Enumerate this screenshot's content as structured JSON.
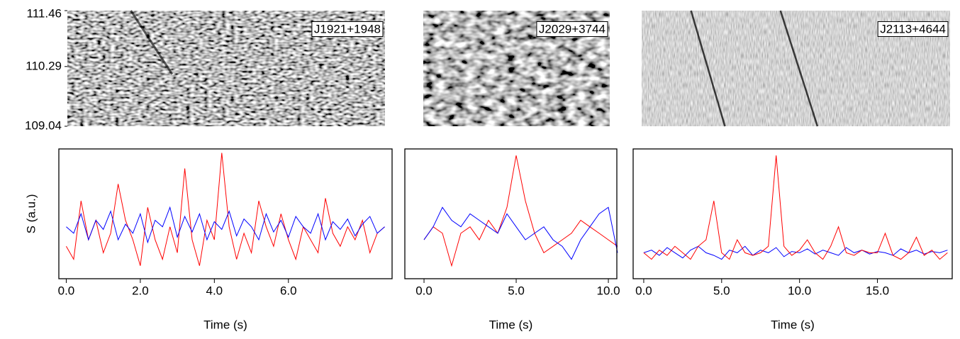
{
  "chart_data": [
    {
      "type": "heatmap",
      "label": "J1921+1948",
      "ylim": [
        109.04,
        111.46
      ],
      "yticks": [
        109.04,
        110.29,
        111.46
      ]
    },
    {
      "type": "heatmap",
      "label": "J2029+3744"
    },
    {
      "type": "heatmap",
      "label": "J2113+4644"
    },
    {
      "type": "line",
      "xlabel": "Time (s)",
      "ylabel": "S (a.u.)",
      "xlim": [
        -0.2,
        8.8
      ],
      "ylim": [
        0,
        1
      ],
      "xticks": [
        {
          "value": 0,
          "label": "0.0"
        },
        {
          "value": 2,
          "label": "2.0"
        },
        {
          "value": 4,
          "label": "4.0"
        },
        {
          "value": 6,
          "label": "6.0"
        }
      ],
      "x": [
        0,
        0.2,
        0.4,
        0.6,
        0.8,
        1,
        1.2,
        1.4,
        1.6,
        1.8,
        2,
        2.2,
        2.4,
        2.6,
        2.8,
        3,
        3.2,
        3.4,
        3.6,
        3.8,
        4,
        4.2,
        4.4,
        4.6,
        4.8,
        5,
        5.2,
        5.4,
        5.6,
        5.8,
        6,
        6.2,
        6.4,
        6.6,
        6.8,
        7,
        7.2,
        7.4,
        7.6,
        7.8,
        8,
        8.2,
        8.4,
        8.6
      ],
      "series": [
        {
          "color": "#ff0000",
          "values": [
            0.25,
            0.15,
            0.6,
            0.3,
            0.45,
            0.2,
            0.35,
            0.73,
            0.45,
            0.3,
            0.1,
            0.55,
            0.3,
            0.15,
            0.4,
            0.2,
            0.85,
            0.3,
            0.1,
            0.45,
            0.3,
            0.97,
            0.4,
            0.15,
            0.35,
            0.2,
            0.6,
            0.4,
            0.25,
            0.5,
            0.3,
            0.15,
            0.4,
            0.3,
            0.2,
            0.62,
            0.35,
            0.25,
            0.4,
            0.3,
            0.45,
            0.2,
            0.35,
            0.4
          ]
        },
        {
          "color": "#0000ff",
          "values": [
            0.4,
            0.35,
            0.5,
            0.3,
            0.45,
            0.38,
            0.52,
            0.3,
            0.42,
            0.35,
            0.5,
            0.28,
            0.45,
            0.4,
            0.55,
            0.32,
            0.48,
            0.36,
            0.5,
            0.3,
            0.44,
            0.38,
            0.52,
            0.33,
            0.46,
            0.4,
            0.3,
            0.5,
            0.36,
            0.45,
            0.32,
            0.48,
            0.4,
            0.35,
            0.5,
            0.3,
            0.44,
            0.38,
            0.46,
            0.33,
            0.42,
            0.48,
            0.35,
            0.4
          ]
        }
      ]
    },
    {
      "type": "line",
      "xlabel": "Time (s)",
      "xlim": [
        -1.04,
        10.46
      ],
      "ylim": [
        0,
        1
      ],
      "xticks": [
        {
          "value": 0,
          "label": "0.0"
        },
        {
          "value": 5,
          "label": "5.0"
        },
        {
          "value": 10,
          "label": "10.0"
        }
      ],
      "x": [
        0,
        0.5,
        1,
        1.5,
        2,
        2.5,
        3,
        3.5,
        4,
        4.5,
        5,
        5.5,
        6,
        6.5,
        7,
        7.5,
        8,
        8.5,
        9,
        9.5,
        10,
        10.5
      ],
      "series": [
        {
          "color": "#ff0000",
          "values": [
            0.3,
            0.4,
            0.35,
            0.1,
            0.35,
            0.4,
            0.3,
            0.45,
            0.35,
            0.55,
            0.95,
            0.6,
            0.35,
            0.2,
            0.25,
            0.3,
            0.35,
            0.45,
            0.4,
            0.35,
            0.3,
            0.25
          ]
        },
        {
          "color": "#0000ff",
          "values": [
            0.3,
            0.4,
            0.55,
            0.45,
            0.4,
            0.5,
            0.45,
            0.4,
            0.35,
            0.5,
            0.4,
            0.3,
            0.35,
            0.4,
            0.3,
            0.25,
            0.15,
            0.3,
            0.4,
            0.5,
            0.55,
            0.2
          ]
        }
      ]
    },
    {
      "type": "line",
      "xlabel": "Time (s)",
      "xlim": [
        -0.68,
        19.8
      ],
      "ylim": [
        0,
        1
      ],
      "xticks": [
        {
          "value": 0,
          "label": "0.0"
        },
        {
          "value": 5,
          "label": "5.0"
        },
        {
          "value": 10,
          "label": "10.0"
        },
        {
          "value": 15,
          "label": "15.0"
        }
      ],
      "x": [
        0,
        0.5,
        1,
        1.5,
        2,
        2.5,
        3,
        3.5,
        4,
        4.5,
        5,
        5.5,
        6,
        6.5,
        7,
        7.5,
        8,
        8.5,
        9,
        9.5,
        10,
        10.5,
        11,
        11.5,
        12,
        12.5,
        13,
        13.5,
        14,
        14.5,
        15,
        15.5,
        16,
        16.5,
        17,
        17.5,
        18,
        18.5,
        19,
        19.5
      ],
      "series": [
        {
          "color": "#0000ff",
          "values": [
            0.2,
            0.22,
            0.18,
            0.24,
            0.2,
            0.16,
            0.22,
            0.25,
            0.2,
            0.18,
            0.15,
            0.22,
            0.2,
            0.25,
            0.18,
            0.22,
            0.2,
            0.24,
            0.17,
            0.21,
            0.2,
            0.23,
            0.19,
            0.22,
            0.2,
            0.18,
            0.24,
            0.2,
            0.22,
            0.19,
            0.21,
            0.2,
            0.18,
            0.23,
            0.2,
            0.22,
            0.19,
            0.21,
            0.2,
            0.22
          ]
        },
        {
          "color": "#ff0000",
          "values": [
            0.2,
            0.15,
            0.22,
            0.18,
            0.25,
            0.2,
            0.15,
            0.25,
            0.3,
            0.6,
            0.2,
            0.15,
            0.3,
            0.2,
            0.18,
            0.2,
            0.25,
            0.95,
            0.25,
            0.18,
            0.22,
            0.3,
            0.2,
            0.15,
            0.25,
            0.4,
            0.2,
            0.18,
            0.22,
            0.2,
            0.2,
            0.35,
            0.18,
            0.15,
            0.2,
            0.32,
            0.18,
            0.22,
            0.15,
            0.2
          ]
        }
      ]
    }
  ]
}
